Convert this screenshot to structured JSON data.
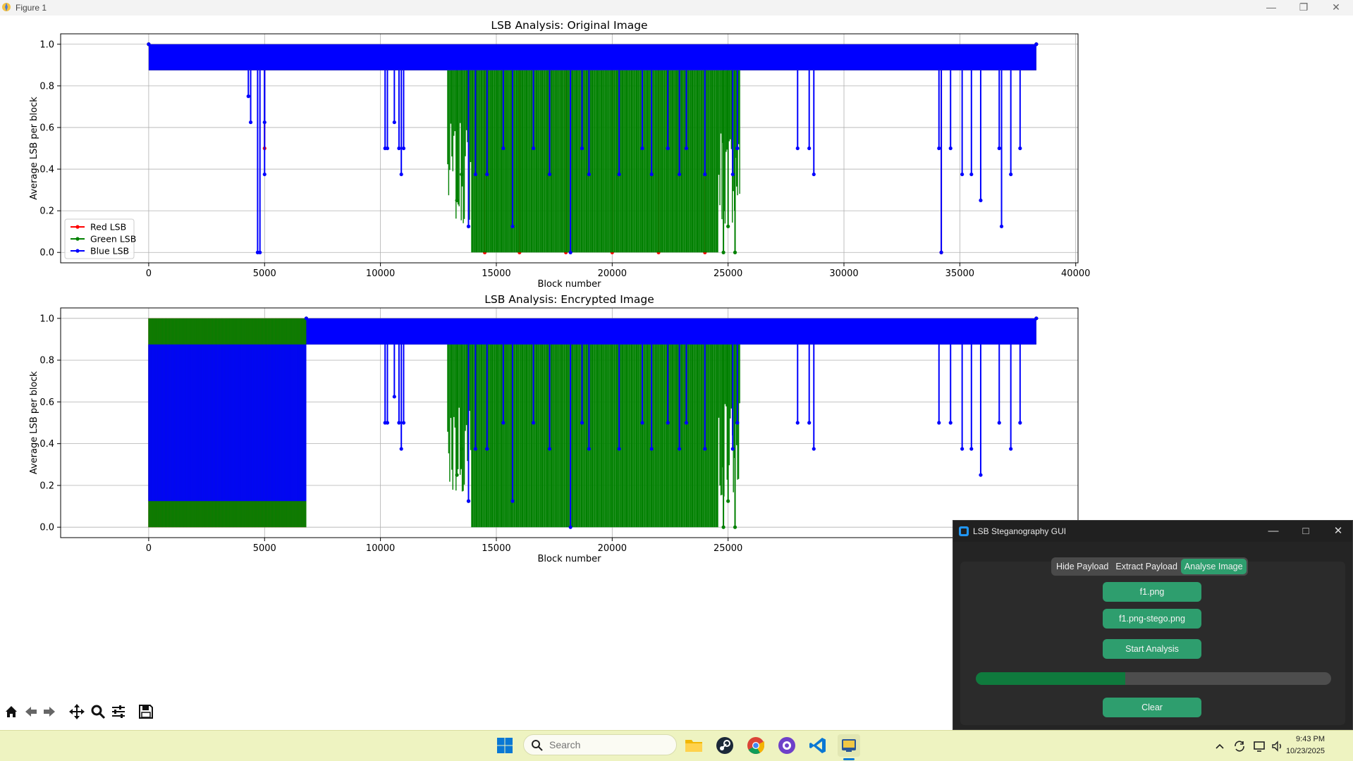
{
  "window": {
    "title": "Figure 1"
  },
  "colors": {
    "red": "#ff0000",
    "green": "#008000",
    "blue": "#0000ff",
    "accent": "#2e9e6e",
    "progress": "#0f7a3d"
  },
  "chart_data": [
    {
      "type": "line",
      "title": "LSB Analysis: Original Image",
      "xlabel": "Block number",
      "ylabel": "Average LSB per block",
      "xlim": [
        -3800,
        40100
      ],
      "ylim": [
        -0.05,
        1.05
      ],
      "xticks": [
        0,
        5000,
        10000,
        15000,
        20000,
        25000,
        30000,
        35000,
        40000
      ],
      "yticks": [
        0.0,
        0.2,
        0.4,
        0.6,
        0.8,
        1.0
      ],
      "xtick_labels": [
        "0",
        "5000",
        "10000",
        "15000",
        "20000",
        "25000",
        "30000",
        "35000",
        "40000"
      ],
      "ytick_labels": [
        "0.0",
        "0.2",
        "0.4",
        "0.6",
        "0.8",
        "1.0"
      ],
      "grid": true,
      "legend_position": "lower-left",
      "series": [
        {
          "name": "Red LSB",
          "color": "red",
          "base_band": [
            0.875,
            1.0
          ],
          "x_range": [
            0,
            38300
          ],
          "dips": [
            [
              5000,
              0.5
            ],
            [
              14500,
              0.0
            ],
            [
              16000,
              0.0
            ],
            [
              18000,
              0.0
            ],
            [
              20000,
              0.0
            ],
            [
              22000,
              0.0
            ],
            [
              24000,
              0.0
            ],
            [
              34200,
              0.0
            ]
          ]
        },
        {
          "name": "Green LSB",
          "color": "green",
          "base_band": [
            0.875,
            1.0
          ],
          "x_range": [
            0,
            38300
          ],
          "dense_region": {
            "x": [
              12900,
              25500
            ],
            "low": 0.0,
            "high": 0.875
          },
          "dips": [
            [
              13300,
              0.25
            ],
            [
              13500,
              0.375
            ],
            [
              13800,
              0.125
            ],
            [
              24800,
              0.0
            ],
            [
              25000,
              0.125
            ],
            [
              25300,
              0.0
            ]
          ]
        },
        {
          "name": "Blue LSB",
          "color": "blue",
          "base_band": [
            0.875,
            1.0
          ],
          "x_range": [
            0,
            38300
          ],
          "dips": [
            [
              4300,
              0.75
            ],
            [
              4400,
              0.625
            ],
            [
              4700,
              0.0
            ],
            [
              4800,
              0.0
            ],
            [
              5000,
              0.625
            ],
            [
              5000,
              0.375
            ],
            [
              10200,
              0.5
            ],
            [
              10300,
              0.5
            ],
            [
              10600,
              0.625
            ],
            [
              10800,
              0.5
            ],
            [
              10900,
              0.375
            ],
            [
              11000,
              0.5
            ],
            [
              13800,
              0.125
            ],
            [
              14100,
              0.375
            ],
            [
              14600,
              0.375
            ],
            [
              15300,
              0.5
            ],
            [
              15700,
              0.125
            ],
            [
              16600,
              0.5
            ],
            [
              17300,
              0.375
            ],
            [
              18200,
              0.0
            ],
            [
              18700,
              0.5
            ],
            [
              19000,
              0.375
            ],
            [
              20300,
              0.375
            ],
            [
              21300,
              0.5
            ],
            [
              21700,
              0.375
            ],
            [
              22400,
              0.5
            ],
            [
              22900,
              0.375
            ],
            [
              23200,
              0.5
            ],
            [
              24000,
              0.375
            ],
            [
              25200,
              0.375
            ],
            [
              25400,
              0.5
            ],
            [
              28000,
              0.5
            ],
            [
              28500,
              0.5
            ],
            [
              28700,
              0.375
            ],
            [
              34100,
              0.5
            ],
            [
              34200,
              0.0
            ],
            [
              34600,
              0.5
            ],
            [
              35100,
              0.375
            ],
            [
              35500,
              0.375
            ],
            [
              35900,
              0.25
            ],
            [
              36700,
              0.5
            ],
            [
              36800,
              0.125
            ],
            [
              37200,
              0.375
            ],
            [
              37600,
              0.5
            ]
          ]
        }
      ]
    },
    {
      "type": "line",
      "title": "LSB Analysis: Encrypted Image",
      "xlabel": "Block number",
      "ylabel": "Average LSB per block",
      "xlim": [
        -3800,
        40100
      ],
      "ylim": [
        -0.05,
        1.05
      ],
      "xticks": [
        0,
        5000,
        10000,
        15000,
        20000,
        25000
      ],
      "yticks": [
        0.0,
        0.2,
        0.4,
        0.6,
        0.8,
        1.0
      ],
      "xtick_labels": [
        "0",
        "5000",
        "10000",
        "15000",
        "20000",
        "25000"
      ],
      "ytick_labels": [
        "0.0",
        "0.2",
        "0.4",
        "0.6",
        "0.8",
        "1.0"
      ],
      "grid": true,
      "legend": "none",
      "series": [
        {
          "color": "red",
          "base_band": [
            0.875,
            1.0
          ],
          "x_range": [
            0,
            38300
          ],
          "noise_region": {
            "x": [
              0,
              6800
            ],
            "low": 0.0,
            "high": 1.0
          }
        },
        {
          "color": "green",
          "base_band": [
            0.875,
            1.0
          ],
          "x_range": [
            0,
            38300
          ],
          "noise_region": {
            "x": [
              0,
              6800
            ],
            "low": 0.0,
            "high": 1.0
          },
          "dense_region": {
            "x": [
              12900,
              25500
            ],
            "low": 0.0,
            "high": 0.875
          },
          "dips": [
            [
              13300,
              0.25
            ],
            [
              13500,
              0.375
            ],
            [
              13800,
              0.125
            ],
            [
              24800,
              0.0
            ],
            [
              25000,
              0.125
            ],
            [
              25300,
              0.0
            ]
          ]
        },
        {
          "color": "blue",
          "base_band": [
            0.875,
            1.0
          ],
          "x_range": [
            0,
            38300
          ],
          "noise_region": {
            "x": [
              0,
              6800
            ],
            "low": 0.125,
            "high": 0.875
          },
          "dips": [
            [
              10200,
              0.5
            ],
            [
              10300,
              0.5
            ],
            [
              10600,
              0.625
            ],
            [
              10800,
              0.5
            ],
            [
              10900,
              0.375
            ],
            [
              11000,
              0.5
            ],
            [
              13800,
              0.125
            ],
            [
              14100,
              0.375
            ],
            [
              14600,
              0.375
            ],
            [
              15300,
              0.5
            ],
            [
              15700,
              0.125
            ],
            [
              16600,
              0.5
            ],
            [
              17300,
              0.375
            ],
            [
              18200,
              0.0
            ],
            [
              18700,
              0.5
            ],
            [
              19000,
              0.375
            ],
            [
              20300,
              0.375
            ],
            [
              21300,
              0.5
            ],
            [
              21700,
              0.375
            ],
            [
              22400,
              0.5
            ],
            [
              22900,
              0.375
            ],
            [
              23200,
              0.5
            ],
            [
              24000,
              0.375
            ],
            [
              25200,
              0.375
            ],
            [
              25400,
              0.5
            ],
            [
              28000,
              0.5
            ],
            [
              28500,
              0.5
            ],
            [
              28700,
              0.375
            ],
            [
              34100,
              0.5
            ],
            [
              34600,
              0.5
            ],
            [
              35100,
              0.375
            ],
            [
              35500,
              0.375
            ],
            [
              35900,
              0.25
            ],
            [
              36700,
              0.5
            ],
            [
              37200,
              0.375
            ],
            [
              37600,
              0.5
            ]
          ]
        }
      ]
    }
  ],
  "gui": {
    "title": "LSB Steganography GUI",
    "tabs": [
      "Hide Payload",
      "Extract Payload",
      "Analyse Image"
    ],
    "active_tab": "Analyse Image",
    "file1_button": "f1.png",
    "file2_button": "f1.png-stego.png",
    "start_button": "Start Analysis",
    "progress": 0.42,
    "clear_button": "Clear"
  },
  "taskbar": {
    "search_placeholder": "Search",
    "time": "9:43 PM",
    "date": "10/23/2025"
  }
}
